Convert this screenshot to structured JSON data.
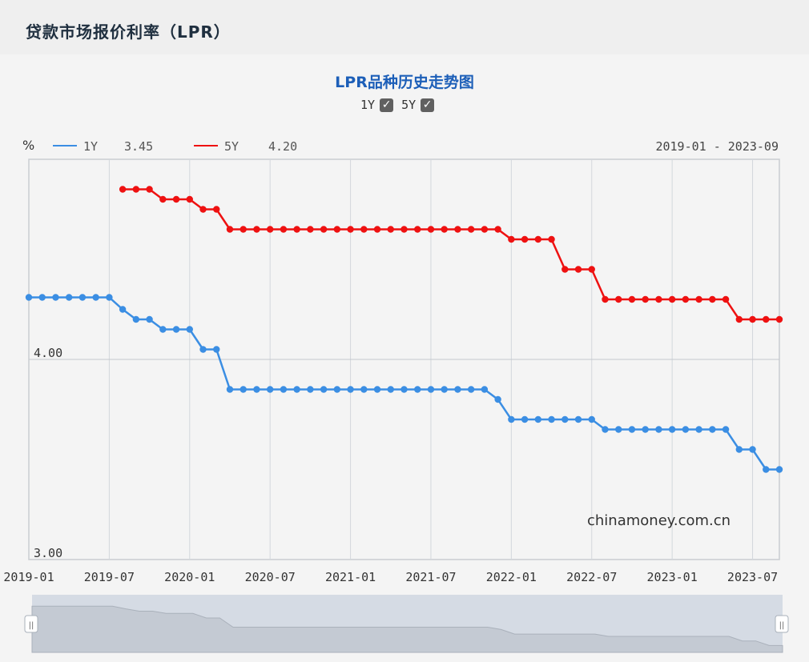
{
  "page": {
    "title": "贷款市场报价利率（LPR）"
  },
  "chart_data": {
    "type": "line",
    "title": "LPR品种历史走势图",
    "unit_label": "%",
    "date_range": "2019-01 - 2023-09",
    "watermark": "chinamoney.com.cn",
    "ylim": [
      3.0,
      5.0
    ],
    "y_ticks": [
      "4.00",
      "3.00"
    ],
    "x_ticks": [
      "2019-01",
      "2019-07",
      "2020-01",
      "2020-07",
      "2021-01",
      "2021-07",
      "2022-01",
      "2022-07",
      "2023-01",
      "2023-07"
    ],
    "x": [
      "2019-01",
      "2019-02",
      "2019-03",
      "2019-04",
      "2019-05",
      "2019-06",
      "2019-07",
      "2019-08",
      "2019-09",
      "2019-10",
      "2019-11",
      "2019-12",
      "2020-01",
      "2020-02",
      "2020-03",
      "2020-04",
      "2020-05",
      "2020-06",
      "2020-07",
      "2020-08",
      "2020-09",
      "2020-10",
      "2020-11",
      "2020-12",
      "2021-01",
      "2021-02",
      "2021-03",
      "2021-04",
      "2021-05",
      "2021-06",
      "2021-07",
      "2021-08",
      "2021-09",
      "2021-10",
      "2021-11",
      "2021-12",
      "2022-01",
      "2022-02",
      "2022-03",
      "2022-04",
      "2022-05",
      "2022-06",
      "2022-07",
      "2022-08",
      "2022-09",
      "2022-10",
      "2022-11",
      "2022-12",
      "2023-01",
      "2023-02",
      "2023-03",
      "2023-04",
      "2023-05",
      "2023-06",
      "2023-07",
      "2023-08",
      "2023-09"
    ],
    "series": [
      {
        "name": "1Y",
        "latest": "3.45",
        "color": "#3b8ee3",
        "values": [
          4.31,
          4.31,
          4.31,
          4.31,
          4.31,
          4.31,
          4.31,
          4.25,
          4.2,
          4.2,
          4.15,
          4.15,
          4.15,
          4.05,
          4.05,
          3.85,
          3.85,
          3.85,
          3.85,
          3.85,
          3.85,
          3.85,
          3.85,
          3.85,
          3.85,
          3.85,
          3.85,
          3.85,
          3.85,
          3.85,
          3.85,
          3.85,
          3.85,
          3.85,
          3.85,
          3.8,
          3.7,
          3.7,
          3.7,
          3.7,
          3.7,
          3.7,
          3.7,
          3.65,
          3.65,
          3.65,
          3.65,
          3.65,
          3.65,
          3.65,
          3.65,
          3.65,
          3.65,
          3.55,
          3.55,
          3.45,
          3.45
        ]
      },
      {
        "name": "5Y",
        "latest": "4.20",
        "color": "#ee1111",
        "values": [
          null,
          null,
          null,
          null,
          null,
          null,
          null,
          4.85,
          4.85,
          4.85,
          4.8,
          4.8,
          4.8,
          4.75,
          4.75,
          4.65,
          4.65,
          4.65,
          4.65,
          4.65,
          4.65,
          4.65,
          4.65,
          4.65,
          4.65,
          4.65,
          4.65,
          4.65,
          4.65,
          4.65,
          4.65,
          4.65,
          4.65,
          4.65,
          4.65,
          4.65,
          4.6,
          4.6,
          4.6,
          4.6,
          4.45,
          4.45,
          4.45,
          4.3,
          4.3,
          4.3,
          4.3,
          4.3,
          4.3,
          4.3,
          4.3,
          4.3,
          4.3,
          4.2,
          4.2,
          4.2,
          4.2
        ]
      }
    ],
    "grid": true,
    "legend": "top-left",
    "navigator": {
      "handle_glyph": "||"
    }
  }
}
